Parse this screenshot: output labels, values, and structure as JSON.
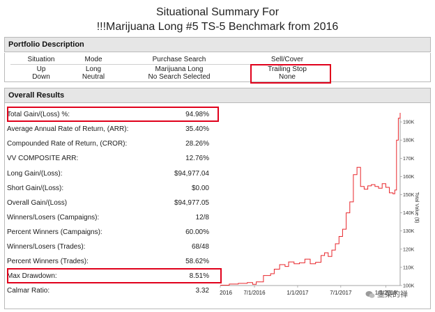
{
  "report": {
    "title_line1": "Situational Summary For",
    "title_line2": "!!!Marijuana Long #5 TS-5 Benchmark from 2016"
  },
  "portfolio": {
    "header": "Portfolio Description",
    "columns": [
      "Situation",
      "Mode",
      "Purchase Search",
      "Sell/Cover"
    ],
    "rows": [
      [
        "Up",
        "Long",
        "Marijuana Long",
        "Trailing Stop"
      ],
      [
        "Down",
        "Neutral",
        "No Search Selected",
        "None"
      ]
    ]
  },
  "results": {
    "header": "Overall Results",
    "metrics": [
      {
        "label": "Total Gain/(Loss) %:",
        "value": "94.98%"
      },
      {
        "label": "Average Annual Rate of Return, (ARR):",
        "value": "35.40%"
      },
      {
        "label": "Compounded Rate of Return, (CROR):",
        "value": "28.26%"
      },
      {
        "label": "VV COMPOSITE ARR:",
        "value": "12.76%"
      },
      {
        "label": "Long Gain/(Loss):",
        "value": "$94,977.04"
      },
      {
        "label": "Short Gain/(Loss):",
        "value": "$0.00"
      },
      {
        "label": "Overall Gain/(Loss)",
        "value": "$94,977.05"
      },
      {
        "label": "Winners/Losers (Campaigns):",
        "value": "12/8"
      },
      {
        "label": "Percent Winners (Campaigns):",
        "value": "60.00%"
      },
      {
        "label": "Winners/Losers (Trades):",
        "value": "68/48"
      },
      {
        "label": "Percent Winners (Trades):",
        "value": "58.62%"
      },
      {
        "label": "Max Drawdown:",
        "value": "8.51%"
      },
      {
        "label": "Calmar Ratio:",
        "value": "3.32"
      }
    ]
  },
  "chart_data": {
    "type": "line",
    "title": "",
    "ylabel": "Total Value ($)",
    "xlabel": "",
    "ylim": [
      100000,
      195000
    ],
    "yticks": [
      "100K",
      "110K",
      "120K",
      "130K",
      "140K",
      "150K",
      "160K",
      "170K",
      "180K",
      "190K"
    ],
    "xticks": [
      "2016",
      "7/1/2016",
      "1/1/2017",
      "7/1/2017",
      "1/1/2018"
    ],
    "series": [
      {
        "name": "Total Value",
        "color": "#e8262b",
        "x": [
          0,
          0.05,
          0.1,
          0.15,
          0.18,
          0.2,
          0.24,
          0.28,
          0.3,
          0.33,
          0.36,
          0.38,
          0.41,
          0.44,
          0.47,
          0.5,
          0.53,
          0.56,
          0.58,
          0.6,
          0.62,
          0.64,
          0.66,
          0.68,
          0.7,
          0.72,
          0.74,
          0.76,
          0.78,
          0.8,
          0.82,
          0.84,
          0.86,
          0.88,
          0.9,
          0.92,
          0.94,
          0.96,
          0.97,
          0.98,
          0.99,
          1.0
        ],
        "values": [
          100200,
          100800,
          101200,
          101600,
          100700,
          102000,
          105500,
          106500,
          109000,
          111500,
          110500,
          113000,
          112000,
          112500,
          114500,
          112000,
          112800,
          116500,
          118000,
          116000,
          119500,
          123000,
          127000,
          131000,
          140000,
          146000,
          161000,
          165000,
          154500,
          153000,
          154800,
          155500,
          154500,
          153500,
          156000,
          154000,
          151000,
          150500,
          152500,
          180000,
          192000,
          195000
        ]
      }
    ]
  },
  "watermark": {
    "text": "韭菜的禅"
  },
  "colors": {
    "line": "#e8262b",
    "highlight": "#e0001b",
    "header_bg": "#e6e6e6"
  }
}
